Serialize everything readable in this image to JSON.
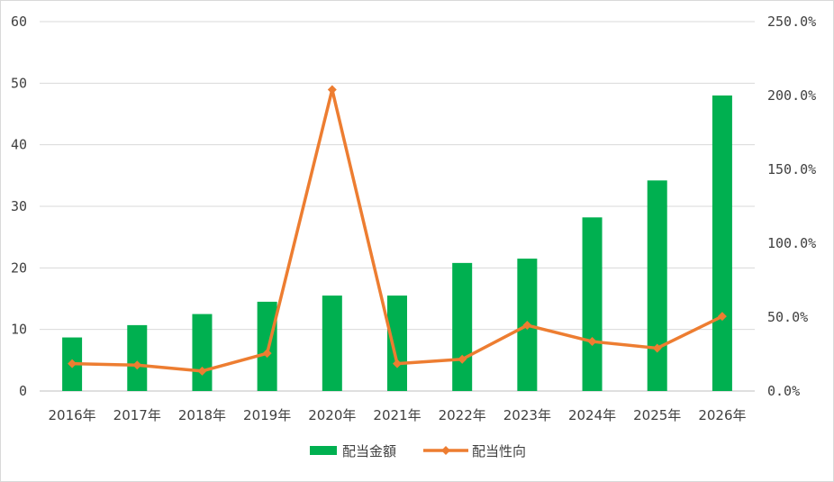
{
  "chart_data": {
    "type": "bar",
    "categories": [
      "2016年",
      "2017年",
      "2018年",
      "2019年",
      "2020年",
      "2021年",
      "2022年",
      "2023年",
      "2024年",
      "2025年",
      "2026年"
    ],
    "series": [
      {
        "name": "配当金額",
        "type": "bar",
        "axis": "left",
        "color": "#00b050",
        "values": [
          8.7,
          10.7,
          12.5,
          14.5,
          15.5,
          15.5,
          20.8,
          21.5,
          28.2,
          34.2,
          48.0
        ]
      },
      {
        "name": "配当性向",
        "type": "line",
        "axis": "right",
        "color": "#ed7d31",
        "marker": "diamond",
        "values": [
          18.5,
          17.5,
          13.5,
          25.5,
          204.0,
          18.5,
          21.5,
          44.5,
          33.5,
          29.0,
          50.5
        ]
      }
    ],
    "y_left": {
      "ylim": [
        0,
        60
      ],
      "ticks": [
        0,
        10,
        20,
        30,
        40,
        50,
        60
      ],
      "tick_labels": [
        "0",
        "10",
        "20",
        "30",
        "40",
        "50",
        "60"
      ]
    },
    "y_right": {
      "ylim": [
        0,
        250
      ],
      "ticks": [
        0,
        50,
        100,
        150,
        200,
        250
      ],
      "tick_labels": [
        "0.0%",
        "50.0%",
        "100.0%",
        "150.0%",
        "200.0%",
        "250.0%"
      ]
    },
    "title": "",
    "xlabel": "",
    "ylabel": "",
    "grid": "horizontal",
    "legend": "bottom-center",
    "colors": {
      "grid": "#d9d9d9",
      "text": "#404040",
      "frame": "#d9d9d9"
    }
  }
}
